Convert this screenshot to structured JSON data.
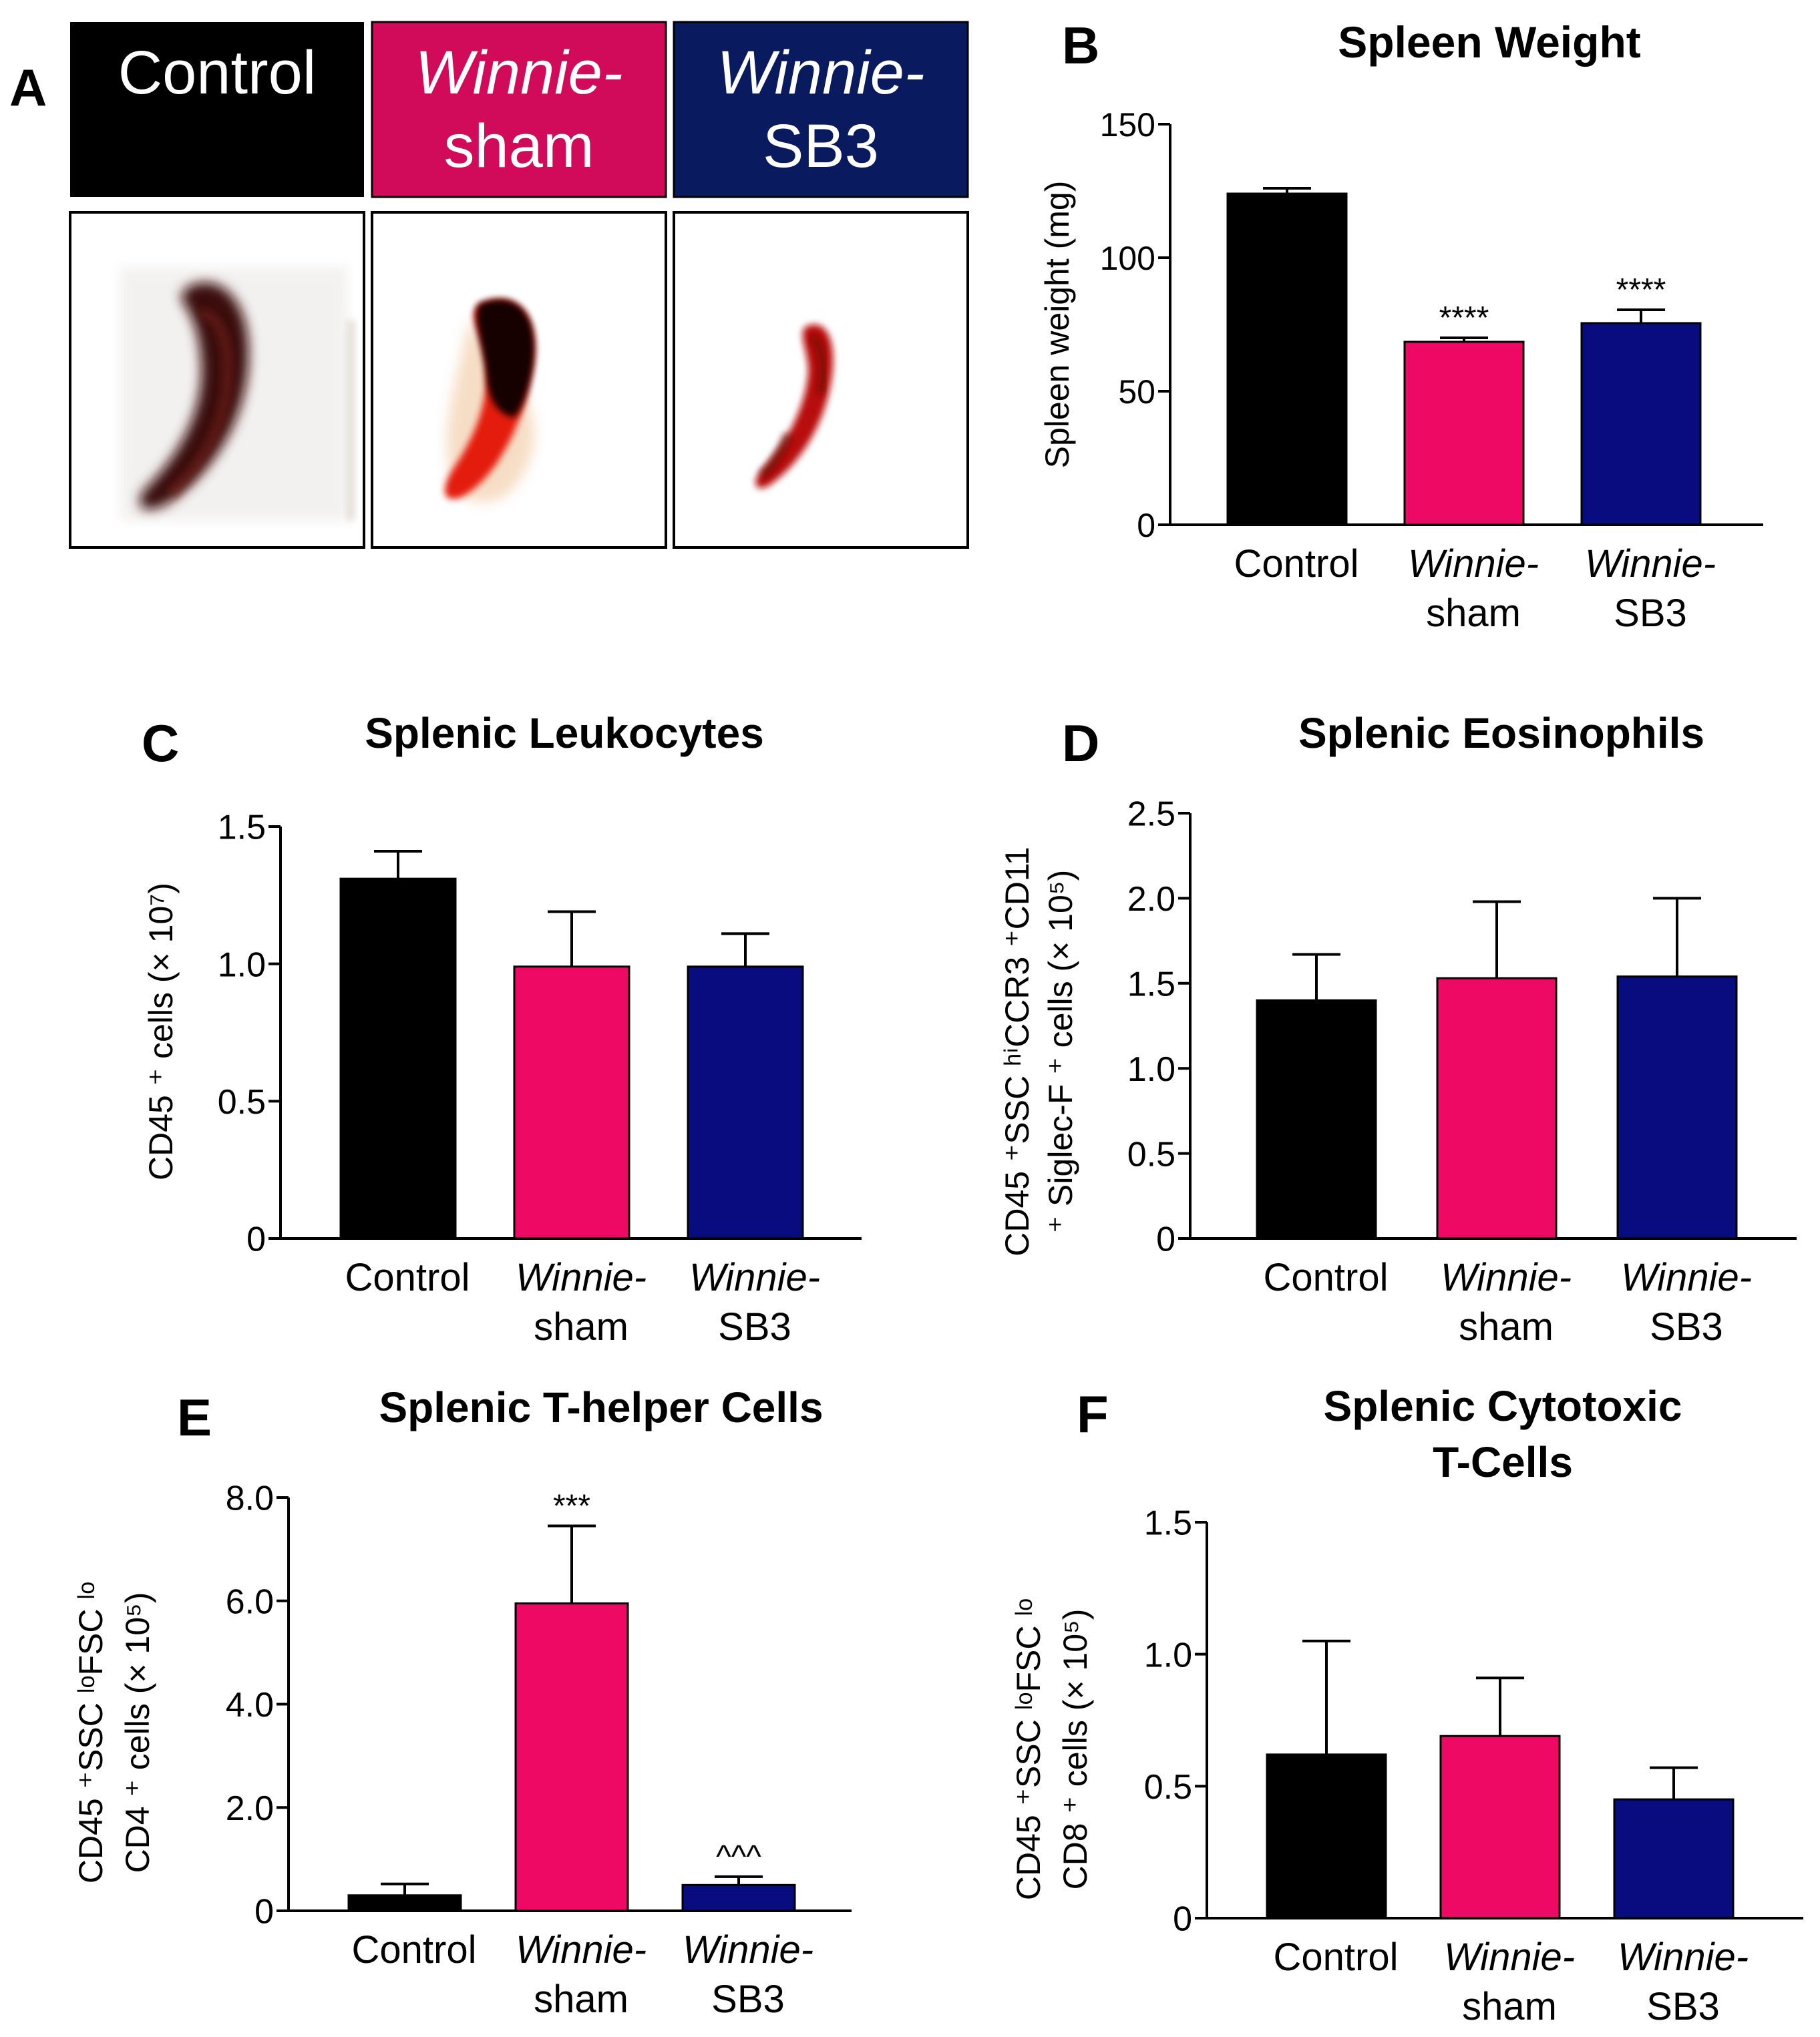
{
  "colors": {
    "control": "#000000",
    "sham": "#EE0A64",
    "sb3": "#080C7E",
    "sham_label_bg": "#D10A5A",
    "sb3_label_bg": "#0A1A5E",
    "axis": "#000000"
  },
  "photo_panel": {
    "letter": "A",
    "labels": [
      {
        "italic": "",
        "plain": "Control"
      },
      {
        "italic": "Winnie-",
        "plain": "sham"
      },
      {
        "italic": "Winnie-",
        "plain": "SB3"
      }
    ]
  },
  "chart_data": [
    {
      "id": "B",
      "letter": "B",
      "type": "bar",
      "title_lines": [
        "Spleen Weight"
      ],
      "ylabel": "Spleen weight (mg)",
      "ylim": [
        0,
        150
      ],
      "yticks": [
        "0",
        "50",
        "100",
        "150"
      ],
      "categories": [
        {
          "italic": "",
          "plain": "Control"
        },
        {
          "italic": "Winnie-",
          "plain": "sham"
        },
        {
          "italic": "Winnie-",
          "plain": "SB3"
        }
      ],
      "values": [
        124,
        68.5,
        75.5
      ],
      "errors": [
        2,
        1.5,
        5
      ],
      "annotations": [
        "",
        "****",
        "****"
      ]
    },
    {
      "id": "C",
      "letter": "C",
      "type": "bar",
      "title_lines": [
        "Splenic Leukocytes"
      ],
      "ylabel_lines": [
        "CD45 ⁺ cells (× 10⁷)"
      ],
      "ylim": [
        0,
        1.5
      ],
      "yticks": [
        "0",
        "0.5",
        "1.0",
        "1.5"
      ],
      "categories": [
        {
          "italic": "",
          "plain": "Control"
        },
        {
          "italic": "Winnie-",
          "plain": "sham"
        },
        {
          "italic": "Winnie-",
          "plain": "SB3"
        }
      ],
      "values": [
        1.31,
        0.99,
        0.99
      ],
      "errors": [
        0.1,
        0.2,
        0.12
      ],
      "annotations": [
        "",
        "",
        ""
      ]
    },
    {
      "id": "D",
      "letter": "D",
      "type": "bar",
      "title_lines": [
        "Splenic Eosinophils"
      ],
      "ylabel_lines": [
        "CD45 ⁺SSC ʰⁱCCR3 ⁺CD11",
        "⁺ Siglec-F ⁺ cells (× 10⁵)"
      ],
      "ylim": [
        0,
        2.5
      ],
      "yticks": [
        "0",
        "0.5",
        "1.0",
        "1.5",
        "2.0",
        "2.5"
      ],
      "categories": [
        {
          "italic": "",
          "plain": "Control"
        },
        {
          "italic": "Winnie-",
          "plain": "sham"
        },
        {
          "italic": "Winnie-",
          "plain": "SB3"
        }
      ],
      "values": [
        1.4,
        1.53,
        1.54
      ],
      "errors": [
        0.27,
        0.45,
        0.46
      ],
      "annotations": [
        "",
        "",
        ""
      ]
    },
    {
      "id": "E",
      "letter": "E",
      "type": "bar",
      "title_lines": [
        "Splenic T-helper Cells"
      ],
      "ylabel_lines": [
        "CD45 ⁺SSC ˡᵒFSC ˡᵒ",
        "CD4 ⁺ cells (× 10⁵)"
      ],
      "ylim": [
        0,
        8
      ],
      "yticks": [
        "0",
        "2.0",
        "4.0",
        "6.0",
        "8.0"
      ],
      "categories": [
        {
          "italic": "",
          "plain": "Control"
        },
        {
          "italic": "Winnie-",
          "plain": "sham"
        },
        {
          "italic": "Winnie-",
          "plain": "SB3"
        }
      ],
      "values": [
        0.3,
        5.95,
        0.5
      ],
      "errors": [
        0.22,
        1.5,
        0.16
      ],
      "annotations": [
        "",
        "***",
        "^^^"
      ]
    },
    {
      "id": "F",
      "letter": "F",
      "type": "bar",
      "title_lines": [
        "Splenic Cytotoxic",
        "T-Cells"
      ],
      "ylabel_lines": [
        "CD45 ⁺SSC ˡᵒFSC ˡᵒ",
        "CD8 ⁺ cells (× 10⁵)"
      ],
      "ylim": [
        0,
        1.5
      ],
      "yticks": [
        "0",
        "0.5",
        "1.0",
        "1.5"
      ],
      "categories": [
        {
          "italic": "",
          "plain": "Control"
        },
        {
          "italic": "Winnie-",
          "plain": "sham"
        },
        {
          "italic": "Winnie-",
          "plain": "SB3"
        }
      ],
      "values": [
        0.62,
        0.69,
        0.45
      ],
      "errors": [
        0.43,
        0.22,
        0.12
      ],
      "annotations": [
        "",
        "",
        ""
      ]
    }
  ]
}
